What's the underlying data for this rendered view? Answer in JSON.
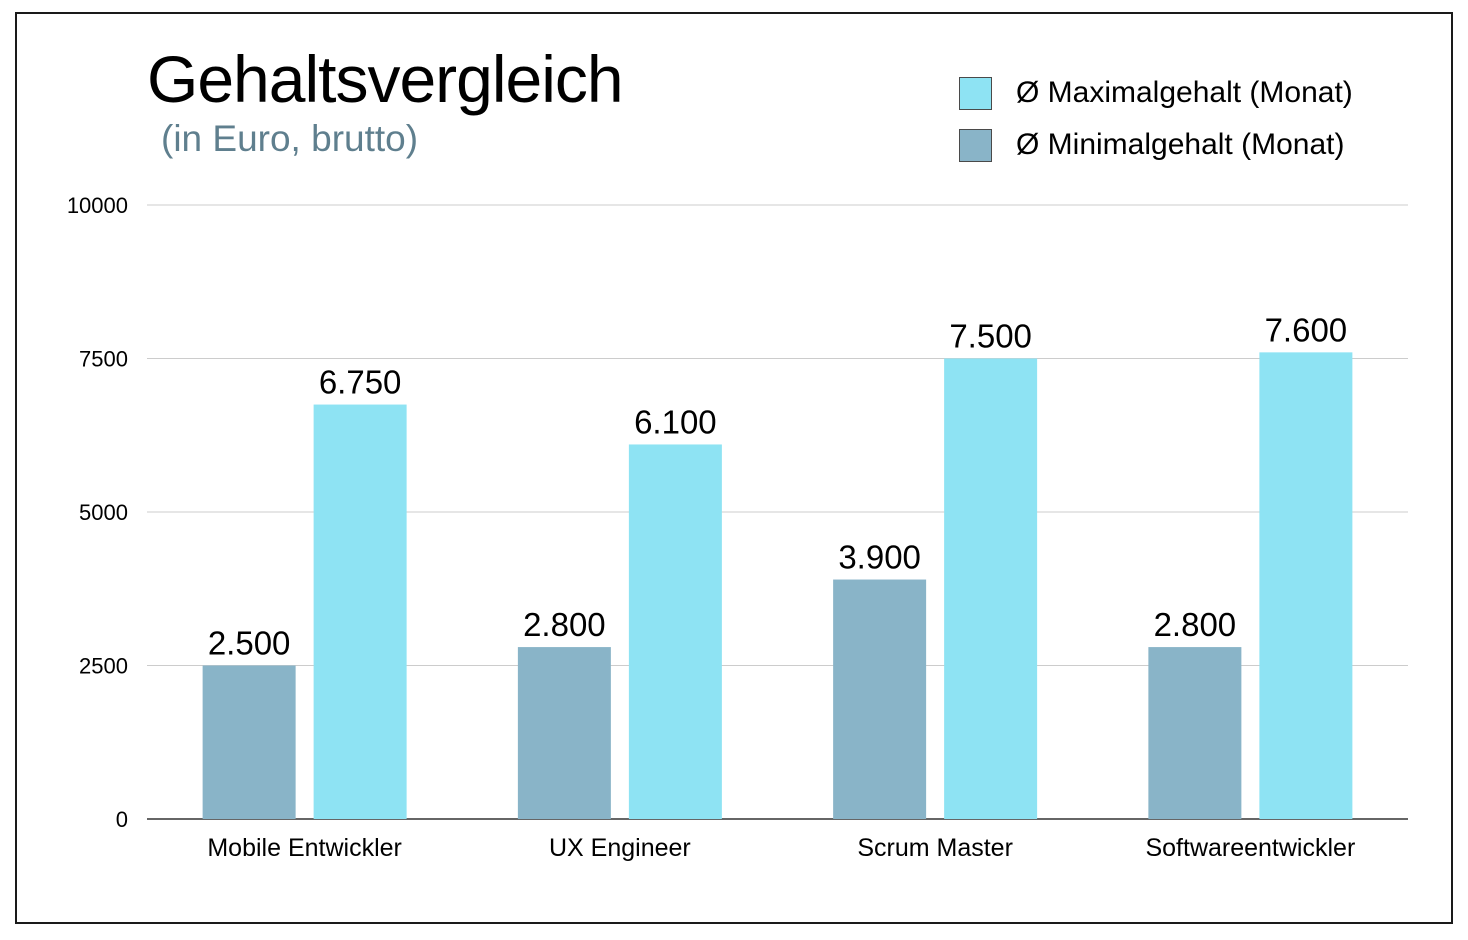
{
  "chart_data": {
    "type": "bar",
    "title": "Gehaltsvergleich",
    "subtitle": "(in Euro, brutto)",
    "categories": [
      "Mobile Entwickler",
      "UX Engineer",
      "Scrum Master",
      "Softwareentwickler"
    ],
    "series": [
      {
        "name": "Ø Minimalgehalt (Monat)",
        "values": [
          2500,
          2800,
          3900,
          2800
        ],
        "labels": [
          "2.500",
          "2.800",
          "3.900",
          "2.800"
        ],
        "color": "#89b4c8"
      },
      {
        "name": "Ø Maximalgehalt (Monat)",
        "values": [
          6750,
          6100,
          7500,
          7600
        ],
        "labels": [
          "6.750",
          "6.100",
          "7.500",
          "7.600"
        ],
        "color": "#8ee3f3"
      }
    ],
    "yticks": [
      "0",
      "2500",
      "5000",
      "7500",
      "10000"
    ],
    "ylim": [
      0,
      10000
    ],
    "grid": true,
    "legend_position": "top-right",
    "xlabel": "",
    "ylabel": ""
  },
  "legend": [
    {
      "label": "Ø Maximalgehalt (Monat)",
      "color": "#8ee3f3"
    },
    {
      "label": "Ø Minimalgehalt (Monat)",
      "color": "#89b4c8"
    }
  ]
}
